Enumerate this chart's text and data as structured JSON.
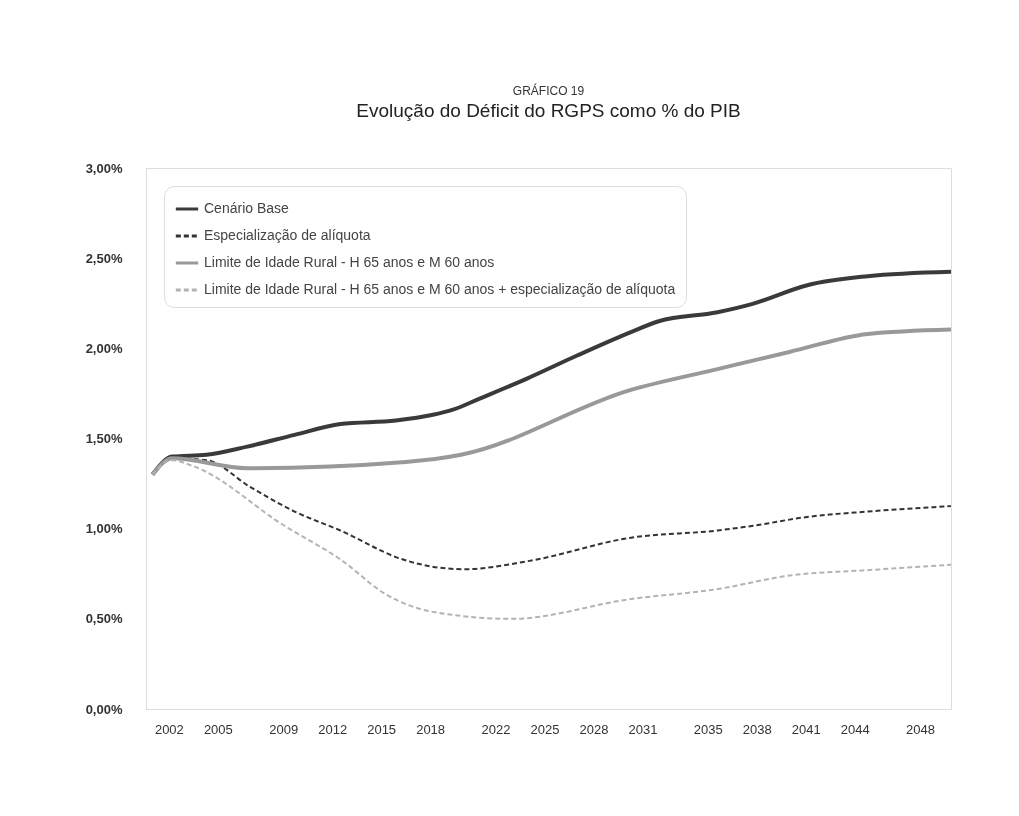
{
  "chart_data": {
    "type": "line",
    "title": "GRÁFICO 19",
    "subtitle": "Evolução do Déficit do RGPS como % do PIB",
    "xlim": [
      2000.6,
      2049.9
    ],
    "xticks": [
      2002,
      2005,
      2009,
      2012,
      2015,
      2018,
      2022,
      2025,
      2028,
      2031,
      2035,
      2038,
      2041,
      2044,
      2048
    ],
    "ylim": [
      0,
      3
    ],
    "yticks": [
      {
        "value": 0,
        "label": "0,00%"
      },
      {
        "value": 0.5,
        "label": "0,50%"
      },
      {
        "value": 1,
        "label": "1,00%"
      },
      {
        "value": 1.5,
        "label": "1,50%"
      },
      {
        "value": 2,
        "label": "2,00%"
      },
      {
        "value": 2.5,
        "label": "2,50%"
      },
      {
        "value": 3,
        "label": "3,00%"
      }
    ],
    "grid": false,
    "legend": "top left",
    "series": [
      {
        "name": "Cenário Base",
        "color": "#3a3a3a",
        "line_style": "solid",
        "x": [
          2001,
          2002.2,
          2004.3,
          2006.8,
          2009.7,
          2012.5,
          2015.9,
          2018.1,
          2019.4,
          2021,
          2024,
          2027,
          2030.3,
          2032,
          2035.6,
          2037.7,
          2041.1,
          2044.8,
          2049.9
        ],
        "values": [
          1.3,
          1.4,
          1.41,
          1.455,
          1.52,
          1.58,
          1.6,
          1.63,
          1.66,
          1.72,
          1.835,
          1.96,
          2.09,
          2.15,
          2.2,
          2.245,
          2.35,
          2.4,
          2.425
        ]
      },
      {
        "name": "Especialização de alíquota",
        "color": "#333333",
        "line_style": "dashed",
        "x": [
          2001,
          2002.2,
          2004.3,
          2007,
          2009.7,
          2012.5,
          2016.3,
          2018.1,
          2020.1,
          2024,
          2030.3,
          2035.6,
          2037.7,
          2041.1,
          2044.8,
          2049.9
        ],
        "values": [
          1.3,
          1.39,
          1.38,
          1.23,
          1.095,
          0.99,
          0.83,
          0.79,
          0.775,
          0.82,
          0.95,
          0.99,
          1.015,
          1.065,
          1.095,
          1.125
        ]
      },
      {
        "name": "Limite de Idade Rural - H 65 anos e M 60 anos",
        "color": "#999999",
        "line_style": "solid",
        "x": [
          2001,
          2002.2,
          2006.8,
          2016.5,
          2019.9,
          2030.3,
          2035.6,
          2040,
          2044.8,
          2049.9
        ],
        "values": [
          1.3,
          1.39,
          1.335,
          1.37,
          1.41,
          1.77,
          1.885,
          1.98,
          2.08,
          2.105
        ]
      },
      {
        "name": "Limite de Idade Rural - H 65 anos e M 60 anos + especialização de alíquota",
        "color": "#b3b3b3",
        "line_style": "dashed",
        "x": [
          2001,
          2002.2,
          2003.4,
          2009.1,
          2012.5,
          2015.4,
          2018.1,
          2023,
          2030.3,
          2035.6,
          2040,
          2044.8,
          2049.9
        ],
        "values": [
          1.3,
          1.38,
          1.35,
          1.015,
          0.83,
          0.63,
          0.54,
          0.5,
          0.61,
          0.665,
          0.74,
          0.77,
          0.8
        ]
      }
    ]
  }
}
